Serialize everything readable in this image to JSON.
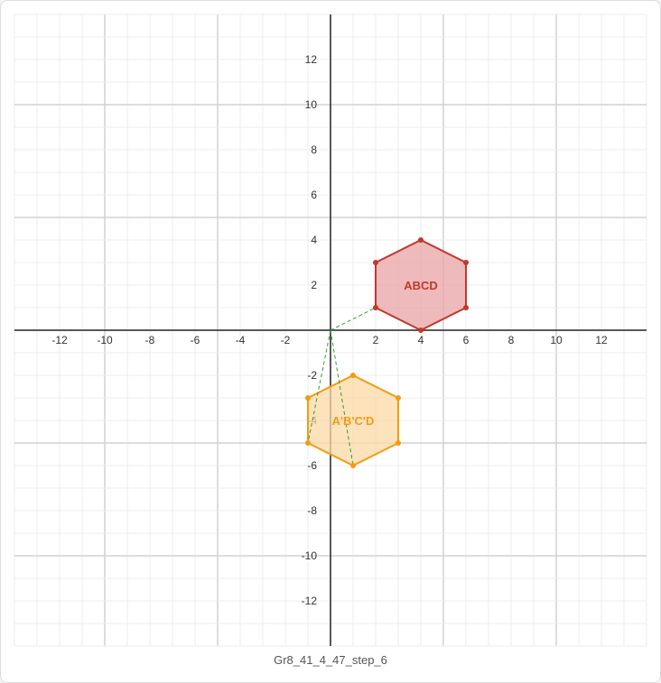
{
  "chart_data": {
    "type": "scatter",
    "xlim": [
      -14,
      14
    ],
    "ylim": [
      -14,
      14
    ],
    "grid": true,
    "x_ticks": [
      -12,
      -10,
      -8,
      -6,
      -4,
      -2,
      2,
      4,
      6,
      8,
      10,
      12
    ],
    "y_ticks": [
      12,
      10,
      8,
      6,
      4,
      2,
      -2,
      -4,
      -6,
      -8,
      -10,
      -12
    ],
    "shapes": [
      {
        "label": "ABCD",
        "stroke": "#c0392b",
        "fill": "#e8a3a6",
        "vertices": [
          [
            2,
            1
          ],
          [
            2,
            3
          ],
          [
            4,
            4
          ],
          [
            6,
            3
          ],
          [
            6,
            1
          ],
          [
            4,
            0
          ]
        ]
      },
      {
        "label": "A'B'C'D",
        "stroke": "#f39c12",
        "fill": "#fbd9a6",
        "vertices": [
          [
            -1,
            -5
          ],
          [
            -1,
            -3
          ],
          [
            1,
            -2
          ],
          [
            3,
            -3
          ],
          [
            3,
            -5
          ],
          [
            1,
            -6
          ]
        ]
      }
    ],
    "rotation_guides": {
      "color": "#2e9e2e",
      "center": [
        0,
        0
      ],
      "segments": [
        [
          [
            0,
            0
          ],
          [
            2,
            1
          ]
        ],
        [
          [
            0,
            0
          ],
          [
            -1,
            -5
          ]
        ],
        [
          [
            0,
            0
          ],
          [
            1,
            -6
          ]
        ]
      ]
    }
  },
  "caption": "Gr8_41_4_47_step_6"
}
